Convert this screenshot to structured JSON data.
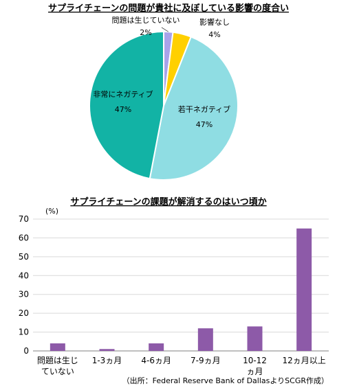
{
  "charts": {
    "pie": {
      "title": "サプライチェーンの問題が貴社に及ぼしている影響の度合い",
      "slices": [
        {
          "name": "問題は生じていない",
          "value": 2,
          "pct": "2%",
          "color": "#a9a3ea"
        },
        {
          "name": "影響なし",
          "value": 4,
          "pct": "4%",
          "color": "#ffd000"
        },
        {
          "name": "若干ネガティブ",
          "value": 47,
          "pct": "47%",
          "color": "#8fdde3"
        },
        {
          "name": "非常にネガティブ",
          "value": 47,
          "pct": "47%",
          "color": "#12b3a5"
        }
      ]
    },
    "bar": {
      "title": "サプライチェーンの課題が解消するのはいつ頃か",
      "unit": "(%)",
      "bar_color": "#8d5aa8"
    }
  },
  "chart_data": [
    {
      "type": "pie",
      "title": "サプライチェーンの問題が貴社に及ぼしている影響の度合い",
      "categories": [
        "問題は生じていない",
        "影響なし",
        "若干ネガティブ",
        "非常にネガティブ"
      ],
      "values": [
        2,
        4,
        47,
        47
      ]
    },
    {
      "type": "bar",
      "title": "サプライチェーンの課題が解消するのはいつ頃か",
      "categories": [
        "問題は生じていない",
        "1-3ヵ月",
        "4-6ヵ月",
        "7-9ヵ月",
        "10-12ヵ月",
        "12ヵ月以上"
      ],
      "values": [
        4,
        1,
        4,
        12,
        13,
        65
      ],
      "ylabel": "(%)",
      "ylim": [
        0,
        70
      ],
      "yticks": [
        0,
        10,
        20,
        30,
        40,
        50,
        60,
        70
      ],
      "grid": true
    }
  ],
  "source": "（出所：Federal Reserve Bank of DallasよりSCGR作成）"
}
